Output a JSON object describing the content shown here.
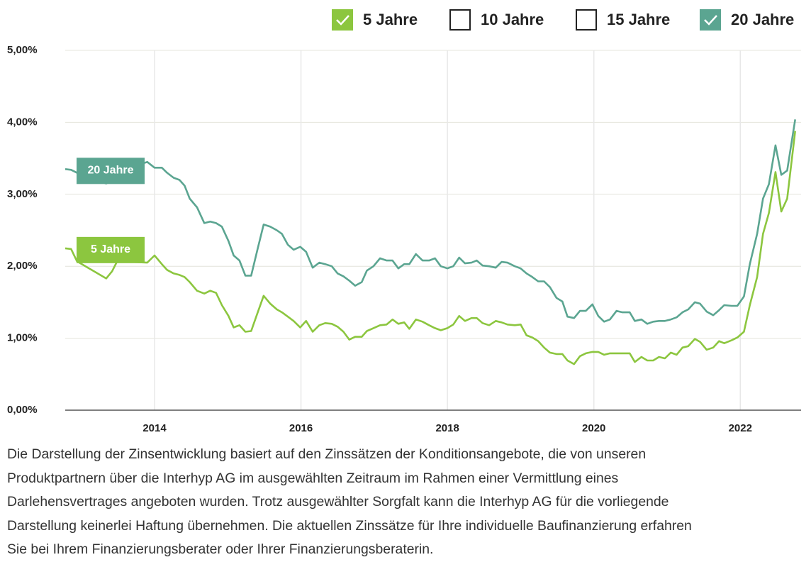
{
  "chart_data": {
    "type": "line",
    "legend": [
      {
        "name": "5 Jahre",
        "checked": true,
        "color": "#8cc63f"
      },
      {
        "name": "10 Jahre",
        "checked": false,
        "color": "#4a9a88"
      },
      {
        "name": "15 Jahre",
        "checked": false,
        "color": "#4a9a88"
      },
      {
        "name": "20 Jahre",
        "checked": true,
        "color": "#5ba591"
      }
    ],
    "x": [
      2012.78,
      2012.86,
      2012.94,
      2013.34,
      2013.42,
      2013.49,
      2013.9,
      2014.0,
      2014.1,
      2014.17,
      2014.26,
      2014.34,
      2014.41,
      2014.48,
      2014.58,
      2014.68,
      2014.76,
      2014.84,
      2014.92,
      2015.01,
      2015.08,
      2015.16,
      2015.24,
      2015.32,
      2015.41,
      2015.49,
      2015.58,
      2015.67,
      2015.74,
      2015.82,
      2015.9,
      2015.99,
      2016.07,
      2016.16,
      2016.25,
      2016.33,
      2016.42,
      2016.5,
      2016.58,
      2016.66,
      2016.74,
      2016.83,
      2016.9,
      2016.99,
      2017.08,
      2017.17,
      2017.25,
      2017.33,
      2017.41,
      2017.48,
      2017.57,
      2017.66,
      2017.75,
      2017.83,
      2017.91,
      2018.0,
      2018.08,
      2018.16,
      2018.24,
      2018.33,
      2018.4,
      2018.48,
      2018.57,
      2018.66,
      2018.74,
      2018.82,
      2018.92,
      2019.0,
      2019.08,
      2019.16,
      2019.24,
      2019.32,
      2019.4,
      2019.49,
      2019.57,
      2019.64,
      2019.73,
      2019.81,
      2019.89,
      2019.98,
      2020.06,
      2020.14,
      2020.22,
      2020.31,
      2020.39,
      2020.49,
      2020.56,
      2020.65,
      2020.73,
      2020.81,
      2020.89,
      2020.97,
      2021.05,
      2021.13,
      2021.21,
      2021.29,
      2021.38,
      2021.45,
      2021.54,
      2021.63,
      2021.71,
      2021.78,
      2021.88,
      2021.96,
      2022.05,
      2022.13,
      2022.23,
      2022.31,
      2022.39,
      2022.48,
      2022.56,
      2022.64,
      2022.75
    ],
    "series": [
      {
        "name": "20 Jahre",
        "color": "#5ba591",
        "values": [
          3.35,
          3.34,
          3.3,
          3.15,
          3.2,
          3.3,
          3.45,
          3.37,
          3.37,
          3.3,
          3.23,
          3.2,
          3.12,
          2.94,
          2.82,
          2.6,
          2.62,
          2.6,
          2.55,
          2.35,
          2.15,
          2.08,
          1.87,
          1.87,
          2.25,
          2.58,
          2.55,
          2.5,
          2.45,
          2.3,
          2.23,
          2.27,
          2.2,
          1.98,
          2.05,
          2.03,
          2.0,
          1.9,
          1.86,
          1.8,
          1.73,
          1.78,
          1.94,
          2.0,
          2.11,
          2.08,
          2.08,
          1.97,
          2.03,
          2.03,
          2.17,
          2.08,
          2.08,
          2.11,
          2.0,
          1.97,
          2.0,
          2.12,
          2.04,
          2.05,
          2.08,
          2.01,
          2.0,
          1.98,
          2.06,
          2.05,
          2.0,
          1.97,
          1.9,
          1.85,
          1.79,
          1.79,
          1.71,
          1.56,
          1.51,
          1.3,
          1.28,
          1.38,
          1.38,
          1.47,
          1.31,
          1.23,
          1.26,
          1.38,
          1.36,
          1.36,
          1.24,
          1.26,
          1.2,
          1.23,
          1.24,
          1.24,
          1.26,
          1.29,
          1.36,
          1.4,
          1.5,
          1.48,
          1.37,
          1.32,
          1.39,
          1.46,
          1.45,
          1.45,
          1.58,
          2.03,
          2.45,
          2.94,
          3.14,
          3.68,
          3.27,
          3.33,
          4.04
        ]
      },
      {
        "name": "5 Jahre",
        "color": "#8cc63f",
        "values": [
          2.25,
          2.24,
          2.07,
          1.83,
          1.93,
          2.07,
          2.05,
          2.15,
          2.03,
          1.95,
          1.9,
          1.88,
          1.85,
          1.78,
          1.66,
          1.62,
          1.66,
          1.63,
          1.46,
          1.31,
          1.15,
          1.18,
          1.09,
          1.1,
          1.36,
          1.59,
          1.48,
          1.4,
          1.36,
          1.3,
          1.24,
          1.15,
          1.24,
          1.09,
          1.18,
          1.21,
          1.2,
          1.16,
          1.09,
          0.98,
          1.02,
          1.02,
          1.1,
          1.14,
          1.18,
          1.19,
          1.26,
          1.2,
          1.22,
          1.13,
          1.26,
          1.23,
          1.18,
          1.14,
          1.11,
          1.14,
          1.19,
          1.31,
          1.24,
          1.28,
          1.28,
          1.21,
          1.18,
          1.24,
          1.22,
          1.19,
          1.18,
          1.19,
          1.04,
          1.01,
          0.96,
          0.87,
          0.8,
          0.78,
          0.78,
          0.69,
          0.64,
          0.75,
          0.79,
          0.81,
          0.81,
          0.77,
          0.79,
          0.79,
          0.79,
          0.79,
          0.67,
          0.74,
          0.69,
          0.69,
          0.74,
          0.72,
          0.8,
          0.77,
          0.87,
          0.89,
          0.99,
          0.95,
          0.84,
          0.87,
          0.96,
          0.93,
          0.97,
          1.01,
          1.09,
          1.46,
          1.85,
          2.45,
          2.74,
          3.31,
          2.76,
          2.94,
          3.88
        ]
      }
    ],
    "xlim": [
      2012.78,
      2022.83
    ],
    "xticks": [
      2014,
      2016,
      2018,
      2020,
      2022
    ],
    "ylim": [
      0,
      5
    ],
    "yticks": [
      {
        "value": 0,
        "label": "0,00%"
      },
      {
        "value": 1,
        "label": "1,00%"
      },
      {
        "value": 2,
        "label": "2,00%"
      },
      {
        "value": 3,
        "label": "3,00%"
      },
      {
        "value": 4,
        "label": "4,00%"
      },
      {
        "value": 5,
        "label": "5,00%"
      }
    ],
    "grid": true,
    "note": [
      "Die Darstellung der Zinsentwicklung basiert auf den Zinssätzen der Konditionsangebote, die von unseren",
      "Produktpartnern über die Interhyp AG im ausgewählten Zeitraum im Rahmen einer Vermittlung eines",
      "Darlehensvertrages angeboten wurden. Trotz ausgewählter Sorgfalt kann die Interhyp AG für die vorliegende",
      "Darstellung keinerlei Haftung übernehmen. Die aktuellen Zinssätze für Ihre individuelle Baufinanzierung erfahren",
      "Sie bei Ihrem Finanzierungsberater oder Ihrer Finanzierungsberaterin."
    ]
  }
}
